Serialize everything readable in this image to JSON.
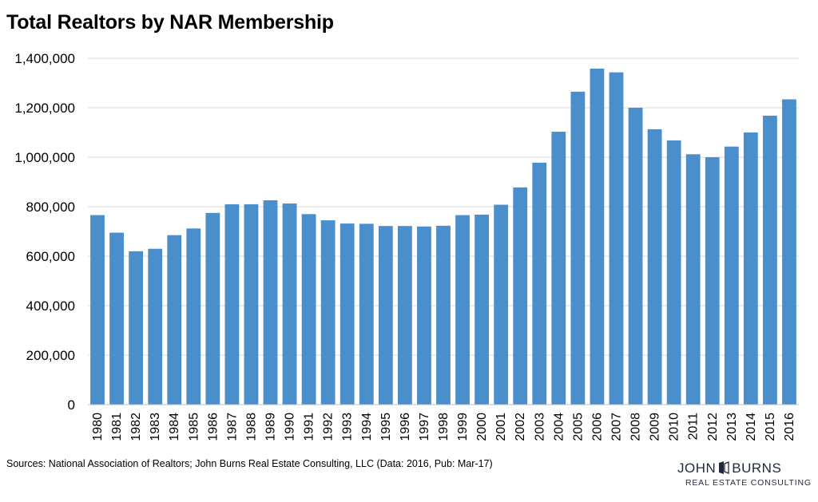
{
  "title": "Total Realtors by NAR Membership",
  "source": "Sources: National Association of Realtors; John Burns Real Estate Consulting, LLC (Data: 2016, Pub: Mar-17)",
  "logo": {
    "left": "JOHN",
    "right": "BURNS",
    "sub": "REAL ESTATE CONSULTING"
  },
  "colors": {
    "bar": "#4a8fcc",
    "grid": "#d9d9d9",
    "logo": "#1f2a3c"
  },
  "chart_data": {
    "type": "bar",
    "title": "Total Realtors by NAR Membership",
    "xlabel": "",
    "ylabel": "",
    "ylim": [
      0,
      1400000
    ],
    "yticks": [
      0,
      200000,
      400000,
      600000,
      800000,
      1000000,
      1200000,
      1400000
    ],
    "ytick_labels": [
      "0",
      "200,000",
      "400,000",
      "600,000",
      "800,000",
      "1,000,000",
      "1,200,000",
      "1,400,000"
    ],
    "grid": true,
    "legend": "none",
    "categories": [
      "1980",
      "1981",
      "1982",
      "1983",
      "1984",
      "1985",
      "1986",
      "1987",
      "1988",
      "1989",
      "1990",
      "1991",
      "1992",
      "1993",
      "1994",
      "1995",
      "1996",
      "1997",
      "1998",
      "1999",
      "2000",
      "2001",
      "2002",
      "2003",
      "2004",
      "2005",
      "2006",
      "2007",
      "2008",
      "2009",
      "2010",
      "2011",
      "2012",
      "2013",
      "2014",
      "2015",
      "2016"
    ],
    "values": [
      766000,
      695000,
      620000,
      630000,
      685000,
      712000,
      775000,
      810000,
      810000,
      826000,
      813000,
      770000,
      745000,
      732000,
      731000,
      722000,
      722000,
      720000,
      723000,
      766000,
      768000,
      808000,
      878000,
      978000,
      1103000,
      1265000,
      1358000,
      1343000,
      1200000,
      1113000,
      1068000,
      1012000,
      1000000,
      1043000,
      1100000,
      1168000,
      1234000
    ]
  }
}
